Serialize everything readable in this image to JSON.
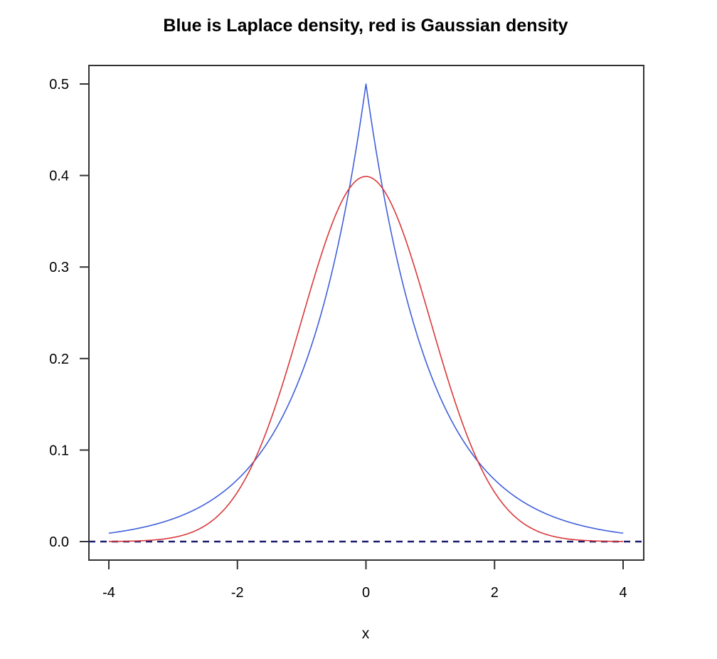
{
  "chart_data": {
    "type": "line",
    "title": "Blue is Laplace density, red is Gaussian density",
    "xlabel": "x",
    "ylabel": "",
    "xlim": [
      -4,
      4
    ],
    "ylim": [
      0,
      0.5
    ],
    "x_ticks": [
      -4,
      -2,
      0,
      2,
      4
    ],
    "x_tick_labels": [
      "-4",
      "-2",
      "0",
      "2",
      "4"
    ],
    "y_ticks": [
      0.0,
      0.1,
      0.2,
      0.3,
      0.4,
      0.5
    ],
    "y_tick_labels": [
      "0.0",
      "0.1",
      "0.2",
      "0.3",
      "0.4",
      "0.5"
    ],
    "grid": false,
    "legend": "none",
    "series": [
      {
        "color": "#3f5fd9",
        "x": [
          -4,
          -3.5,
          -3,
          -2.5,
          -2,
          -1.75,
          -1.5,
          -1.25,
          -1,
          -0.75,
          -0.5,
          -0.25,
          0,
          0.25,
          0.5,
          0.75,
          1,
          1.25,
          1.5,
          1.75,
          2,
          2.5,
          3,
          3.5,
          4
        ],
        "y": [
          0.009,
          0.015,
          0.025,
          0.041,
          0.068,
          0.087,
          0.112,
          0.143,
          0.184,
          0.236,
          0.303,
          0.389,
          0.5,
          0.389,
          0.303,
          0.236,
          0.184,
          0.143,
          0.112,
          0.087,
          0.068,
          0.041,
          0.025,
          0.015,
          0.009
        ]
      },
      {
        "color": "#d9383a",
        "x": [
          -4,
          -3.5,
          -3,
          -2.5,
          -2,
          -1.75,
          -1.5,
          -1.25,
          -1,
          -0.75,
          -0.5,
          -0.25,
          0,
          0.25,
          0.5,
          0.75,
          1,
          1.25,
          1.5,
          1.75,
          2,
          2.5,
          3,
          3.5,
          4
        ],
        "y": [
          0.0001,
          0.0009,
          0.004,
          0.018,
          0.054,
          0.086,
          0.13,
          0.183,
          0.242,
          0.301,
          0.352,
          0.387,
          0.399,
          0.387,
          0.352,
          0.301,
          0.242,
          0.183,
          0.13,
          0.086,
          0.054,
          0.018,
          0.004,
          0.0009,
          0.0001
        ]
      }
    ],
    "reference_lines": [
      {
        "orientation": "horizontal",
        "y": 0,
        "style": "dashed",
        "color": "#1c1c6e"
      }
    ]
  }
}
